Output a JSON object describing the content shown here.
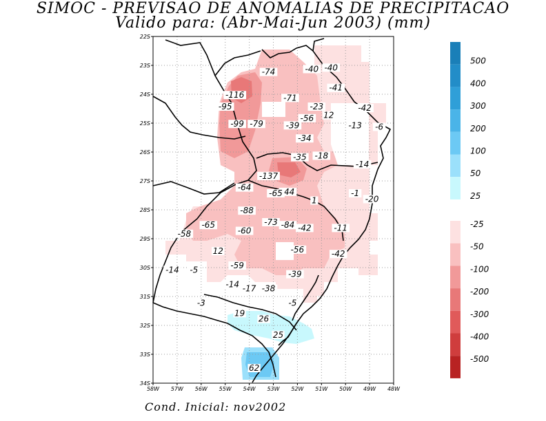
{
  "title": {
    "line1": "SIMOC - PREVISAO DE ANOMALIAS DE PRECIPITACAO",
    "line2": "Valido para: (Abr-Mai-Jun 2003) (mm)"
  },
  "footer": "Cond. Inicial: nov2002",
  "axes": {
    "lat_ticks": [
      "22S",
      "23S",
      "24S",
      "25S",
      "26S",
      "27S",
      "28S",
      "29S",
      "30S",
      "31S",
      "32S",
      "33S",
      "34S"
    ],
    "lon_ticks": [
      "58W",
      "57W",
      "56W",
      "55W",
      "54W",
      "53W",
      "52W",
      "51W",
      "50W",
      "49W",
      "48W"
    ],
    "lon_range": [
      -58,
      -48
    ],
    "lat_range": [
      -34,
      -22
    ]
  },
  "colorbar": {
    "positive": [
      {
        "label": "500",
        "color": "#1a7fb8"
      },
      {
        "label": "400",
        "color": "#228dc8"
      },
      {
        "label": "300",
        "color": "#2f9fd8"
      },
      {
        "label": "200",
        "color": "#4ab4e8"
      },
      {
        "label": "100",
        "color": "#6cc9f4"
      },
      {
        "label": "50",
        "color": "#9be0fb"
      },
      {
        "label": "25",
        "color": "#c8f8fd"
      }
    ],
    "negative": [
      {
        "label": "-25",
        "color": "#fde1e1"
      },
      {
        "label": "-50",
        "color": "#f9c0c0"
      },
      {
        "label": "-100",
        "color": "#f19999"
      },
      {
        "label": "-200",
        "color": "#e87878"
      },
      {
        "label": "-300",
        "color": "#e05a5a"
      },
      {
        "label": "-400",
        "color": "#cf3d3d"
      },
      {
        "label": "-500",
        "color": "#b82222"
      }
    ]
  },
  "map_data": {
    "units": "mm",
    "labels": [
      {
        "lon": -53.2,
        "lat": -23.3,
        "value": "-74"
      },
      {
        "lon": -51.4,
        "lat": -23.2,
        "value": "-40"
      },
      {
        "lon": -50.6,
        "lat": -23.15,
        "value": "-40"
      },
      {
        "lon": -50.4,
        "lat": -23.85,
        "value": "-41"
      },
      {
        "lon": -54.6,
        "lat": -24.1,
        "value": "-116"
      },
      {
        "lon": -52.3,
        "lat": -24.2,
        "value": "-71"
      },
      {
        "lon": -55.0,
        "lat": -24.5,
        "value": "-95"
      },
      {
        "lon": -51.2,
        "lat": -24.5,
        "value": "-23"
      },
      {
        "lon": -49.2,
        "lat": -24.55,
        "value": "-42"
      },
      {
        "lon": -50.7,
        "lat": -24.8,
        "value": "12"
      },
      {
        "lon": -51.6,
        "lat": -24.9,
        "value": "-56"
      },
      {
        "lon": -54.5,
        "lat": -25.1,
        "value": "-99"
      },
      {
        "lon": -53.7,
        "lat": -25.1,
        "value": "-79"
      },
      {
        "lon": -52.2,
        "lat": -25.15,
        "value": "-39"
      },
      {
        "lon": -49.6,
        "lat": -25.15,
        "value": "-13"
      },
      {
        "lon": -48.6,
        "lat": -25.2,
        "value": "-6"
      },
      {
        "lon": -51.7,
        "lat": -25.6,
        "value": "-34"
      },
      {
        "lon": -51.0,
        "lat": -26.2,
        "value": "-18"
      },
      {
        "lon": -51.9,
        "lat": -26.25,
        "value": "-35"
      },
      {
        "lon": -49.3,
        "lat": -26.5,
        "value": "-14"
      },
      {
        "lon": -53.2,
        "lat": -26.9,
        "value": "-137"
      },
      {
        "lon": -54.2,
        "lat": -27.3,
        "value": "-64"
      },
      {
        "lon": -52.4,
        "lat": -27.45,
        "value": "-44"
      },
      {
        "lon": -52.9,
        "lat": -27.5,
        "value": "-65"
      },
      {
        "lon": -49.6,
        "lat": -27.5,
        "value": "-1"
      },
      {
        "lon": -48.9,
        "lat": -27.7,
        "value": "-20"
      },
      {
        "lon": -51.3,
        "lat": -27.75,
        "value": "1"
      },
      {
        "lon": -54.1,
        "lat": -28.1,
        "value": "-88"
      },
      {
        "lon": -53.1,
        "lat": -28.5,
        "value": "-73"
      },
      {
        "lon": -52.4,
        "lat": -28.6,
        "value": "-84"
      },
      {
        "lon": -55.7,
        "lat": -28.6,
        "value": "-65"
      },
      {
        "lon": -54.2,
        "lat": -28.8,
        "value": "-60"
      },
      {
        "lon": -51.7,
        "lat": -28.7,
        "value": "-42"
      },
      {
        "lon": -50.2,
        "lat": -28.7,
        "value": "-11"
      },
      {
        "lon": -56.7,
        "lat": -28.9,
        "value": "-58"
      },
      {
        "lon": -55.3,
        "lat": -29.5,
        "value": "12"
      },
      {
        "lon": -52.0,
        "lat": -29.45,
        "value": "-56"
      },
      {
        "lon": -50.3,
        "lat": -29.6,
        "value": "-42"
      },
      {
        "lon": -54.5,
        "lat": -30.0,
        "value": "-59"
      },
      {
        "lon": -57.2,
        "lat": -30.15,
        "value": "-14"
      },
      {
        "lon": -56.3,
        "lat": -30.15,
        "value": "-5"
      },
      {
        "lon": -52.1,
        "lat": -30.3,
        "value": "-39"
      },
      {
        "lon": -54.7,
        "lat": -30.65,
        "value": "-14"
      },
      {
        "lon": -54.0,
        "lat": -30.8,
        "value": "-17"
      },
      {
        "lon": -53.2,
        "lat": -30.8,
        "value": "-38"
      },
      {
        "lon": -52.2,
        "lat": -31.3,
        "value": "-5"
      },
      {
        "lon": -56.0,
        "lat": -31.3,
        "value": "-3"
      },
      {
        "lon": -54.4,
        "lat": -31.65,
        "value": "19"
      },
      {
        "lon": -53.4,
        "lat": -31.85,
        "value": "26"
      },
      {
        "lon": -52.8,
        "lat": -32.4,
        "value": "25"
      },
      {
        "lon": -53.8,
        "lat": -33.55,
        "value": "62"
      }
    ]
  }
}
